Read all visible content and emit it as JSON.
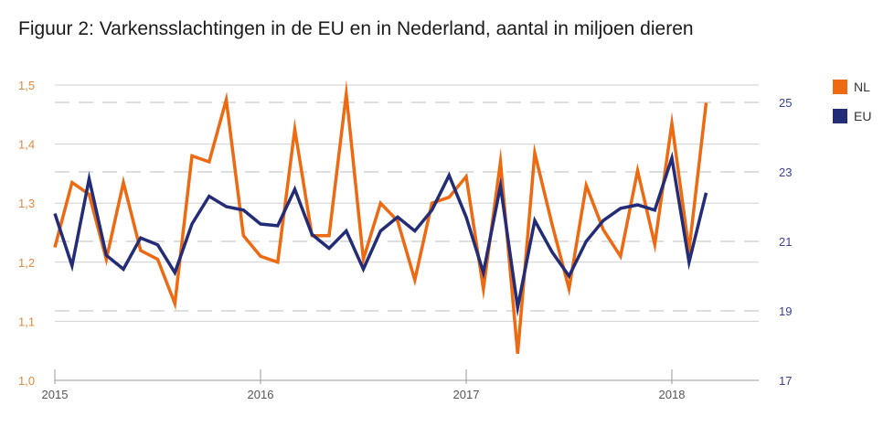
{
  "title": "Figuur 2: Varkensslachtingen in de EU en in Nederland, aantal in miljoen dieren",
  "colors": {
    "NL": "#ee6a12",
    "EU": "#232c77",
    "grid": "#cfcfcf",
    "dash": "#d4d4d4",
    "left_ticks": "#e08a40",
    "right_ticks": "#3b4290",
    "xticks": "#555555"
  },
  "chart_data": {
    "type": "line",
    "title": "Figuur 2: Varkensslachtingen in de EU en in Nederland, aantal in miljoen dieren",
    "x_tick_labels": [
      "2015",
      "2016",
      "2017",
      "2018"
    ],
    "x_tick_months": [
      0,
      12,
      24,
      36
    ],
    "y_left": {
      "ylim": [
        1.0,
        1.5
      ],
      "ticks": [
        "1,0",
        "1,1",
        "1,2",
        "1,3",
        "1,4",
        "1,5"
      ]
    },
    "y_right": {
      "ylim": [
        17,
        25.5
      ],
      "ticks": [
        "17",
        "19",
        "21",
        "23",
        "25"
      ]
    },
    "x_month_range": [
      0,
      41
    ],
    "legend": {
      "position": "right",
      "entries": [
        "NL",
        "EU"
      ]
    },
    "series": [
      {
        "name": "NL",
        "axis": "left",
        "values": [
          1.225,
          1.335,
          1.315,
          1.205,
          1.335,
          1.22,
          1.205,
          1.13,
          1.38,
          1.37,
          1.475,
          1.245,
          1.21,
          1.2,
          1.425,
          1.245,
          1.245,
          1.485,
          1.205,
          1.3,
          1.27,
          1.17,
          1.3,
          1.31,
          1.345,
          1.155,
          1.37,
          1.045,
          1.385,
          1.265,
          1.155,
          1.33,
          1.255,
          1.21,
          1.355,
          1.23,
          1.435,
          1.22,
          1.47
        ]
      },
      {
        "name": "EU",
        "axis": "right",
        "values": [
          21.8,
          20.3,
          22.8,
          20.6,
          20.2,
          21.1,
          20.9,
          20.1,
          21.5,
          22.3,
          22.0,
          21.9,
          21.5,
          21.45,
          22.5,
          21.2,
          20.8,
          21.3,
          20.2,
          21.3,
          21.7,
          21.3,
          21.9,
          22.9,
          21.7,
          20.1,
          22.6,
          19.1,
          21.6,
          20.7,
          20.0,
          21.0,
          21.6,
          21.95,
          22.05,
          21.9,
          23.4,
          20.4,
          22.4
        ]
      }
    ]
  }
}
